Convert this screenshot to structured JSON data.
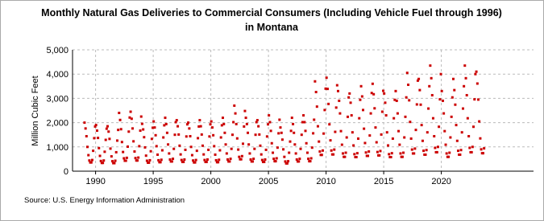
{
  "chart_data": {
    "type": "scatter",
    "title": [
      "Monthly Natural Gas Deliveries to Commercial Consumers (Including Vehicle Fuel through 1996)",
      "in Montana"
    ],
    "y_label": "Million Cubic Feet",
    "source": "Source: U.S. Energy Information Administration",
    "color": "#cc0000",
    "grid": true,
    "xlim": [
      1988,
      2028
    ],
    "ylim": [
      0,
      5000
    ],
    "xticks": [
      1990,
      1995,
      2000,
      2005,
      2010,
      2015,
      2020
    ],
    "yticks": [
      0,
      {
        "value": 1000,
        "label": "1,000"
      },
      {
        "value": 2000,
        "label": "2,000"
      },
      {
        "value": 3000,
        "label": "3,000"
      },
      {
        "value": 4000,
        "label": "4,000"
      },
      {
        "value": 5000,
        "label": "5,000"
      }
    ],
    "x": [
      1989.04,
      1989.13,
      1989.21,
      1989.29,
      1989.38,
      1989.46,
      1989.54,
      1989.63,
      1989.71,
      1989.79,
      1989.88,
      1989.96,
      1990.04,
      1990.13,
      1990.21,
      1990.29,
      1990.38,
      1990.46,
      1990.54,
      1990.63,
      1990.71,
      1990.79,
      1990.88,
      1990.96,
      1991.04,
      1991.13,
      1991.21,
      1991.29,
      1991.38,
      1991.46,
      1991.54,
      1991.63,
      1991.71,
      1991.79,
      1991.88,
      1991.96,
      1992.04,
      1992.13,
      1992.21,
      1992.29,
      1992.38,
      1992.46,
      1992.54,
      1992.63,
      1992.71,
      1992.79,
      1992.88,
      1992.96,
      1993.04,
      1993.13,
      1993.21,
      1993.29,
      1993.38,
      1993.46,
      1993.54,
      1993.63,
      1993.71,
      1993.79,
      1993.88,
      1993.96,
      1994.04,
      1994.13,
      1994.21,
      1994.29,
      1994.38,
      1994.46,
      1994.54,
      1994.63,
      1994.71,
      1994.79,
      1994.88,
      1994.96,
      1995.04,
      1995.13,
      1995.21,
      1995.29,
      1995.38,
      1995.46,
      1995.54,
      1995.63,
      1995.71,
      1995.79,
      1995.88,
      1995.96,
      1996.04,
      1996.13,
      1996.21,
      1996.29,
      1996.38,
      1996.46,
      1996.54,
      1996.63,
      1996.71,
      1996.79,
      1996.88,
      1996.96,
      1997.04,
      1997.13,
      1997.21,
      1997.29,
      1997.38,
      1997.46,
      1997.54,
      1997.63,
      1997.71,
      1997.79,
      1997.88,
      1997.96,
      1998.04,
      1998.13,
      1998.21,
      1998.29,
      1998.38,
      1998.46,
      1998.54,
      1998.63,
      1998.71,
      1998.79,
      1998.88,
      1998.96,
      1999.04,
      1999.13,
      1999.21,
      1999.29,
      1999.38,
      1999.46,
      1999.54,
      1999.63,
      1999.71,
      1999.79,
      1999.88,
      1999.96,
      2000.04,
      2000.13,
      2000.21,
      2000.29,
      2000.38,
      2000.46,
      2000.54,
      2000.63,
      2000.71,
      2000.79,
      2000.88,
      2000.96,
      2001.04,
      2001.13,
      2001.21,
      2001.29,
      2001.38,
      2001.46,
      2001.54,
      2001.63,
      2001.71,
      2001.79,
      2001.88,
      2001.96,
      2002.04,
      2002.13,
      2002.21,
      2002.29,
      2002.38,
      2002.46,
      2002.54,
      2002.63,
      2002.71,
      2002.79,
      2002.88,
      2002.96,
      2003.04,
      2003.13,
      2003.21,
      2003.29,
      2003.38,
      2003.46,
      2003.54,
      2003.63,
      2003.71,
      2003.79,
      2003.88,
      2003.96,
      2004.04,
      2004.13,
      2004.21,
      2004.29,
      2004.38,
      2004.46,
      2004.54,
      2004.63,
      2004.71,
      2004.79,
      2004.88,
      2004.96,
      2005.04,
      2005.13,
      2005.21,
      2005.29,
      2005.38,
      2005.46,
      2005.54,
      2005.63,
      2005.71,
      2005.79,
      2005.88,
      2005.96,
      2006.04,
      2006.13,
      2006.21,
      2006.29,
      2006.38,
      2006.46,
      2006.54,
      2006.63,
      2006.71,
      2006.79,
      2006.88,
      2006.96,
      2007.04,
      2007.13,
      2007.21,
      2007.29,
      2007.38,
      2007.46,
      2007.54,
      2007.63,
      2007.71,
      2007.79,
      2007.88,
      2007.96,
      2008.04,
      2008.13,
      2008.21,
      2008.29,
      2008.38,
      2008.46,
      2008.54,
      2008.63,
      2008.71,
      2008.79,
      2008.88,
      2008.96,
      2009.04,
      2009.13,
      2009.21,
      2009.29,
      2009.38,
      2009.46,
      2009.54,
      2009.63,
      2009.71,
      2009.79,
      2009.88,
      2009.96,
      2010.04,
      2010.13,
      2010.21,
      2010.29,
      2010.38,
      2010.46,
      2010.54,
      2010.63,
      2010.71,
      2010.79,
      2010.88,
      2010.96,
      2011.04,
      2011.13,
      2011.21,
      2011.29,
      2011.38,
      2011.46,
      2011.54,
      2011.63,
      2011.71,
      2011.79,
      2011.88,
      2011.96,
      2012.04,
      2012.13,
      2012.21,
      2012.29,
      2012.38,
      2012.46,
      2012.54,
      2012.63,
      2012.71,
      2012.79,
      2012.88,
      2012.96,
      2013.04,
      2013.13,
      2013.21,
      2013.29,
      2013.38,
      2013.46,
      2013.54,
      2013.63,
      2013.71,
      2013.79,
      2013.88,
      2013.96,
      2014.04,
      2014.13,
      2014.21,
      2014.29,
      2014.38,
      2014.46,
      2014.54,
      2014.63,
      2014.71,
      2014.79,
      2014.88,
      2014.96,
      2015.04,
      2015.13,
      2015.21,
      2015.29,
      2015.38,
      2015.46,
      2015.54,
      2015.63,
      2015.71,
      2015.79,
      2015.88,
      2015.96,
      2016.04,
      2016.13,
      2016.21,
      2016.29,
      2016.38,
      2016.46,
      2016.54,
      2016.63,
      2016.71,
      2016.79,
      2016.88,
      2016.96,
      2017.04,
      2017.13,
      2017.21,
      2017.29,
      2017.38,
      2017.46,
      2017.54,
      2017.63,
      2017.71,
      2017.79,
      2017.88,
      2017.96,
      2018.04,
      2018.13,
      2018.21,
      2018.29,
      2018.38,
      2018.46,
      2018.54,
      2018.63,
      2018.71,
      2018.79,
      2018.88,
      2018.96,
      2019.04,
      2019.13,
      2019.21,
      2019.29,
      2019.38,
      2019.46,
      2019.54,
      2019.63,
      2019.71,
      2019.79,
      2019.88,
      2019.96,
      2020.04,
      2020.13,
      2020.21,
      2020.29,
      2020.38,
      2020.46,
      2020.54,
      2020.63,
      2020.71,
      2020.79,
      2020.88,
      2020.96,
      2021.04,
      2021.13,
      2021.21,
      2021.29,
      2021.38,
      2021.46,
      2021.54,
      2021.63,
      2021.71,
      2021.79,
      2021.88,
      2021.96,
      2022.04,
      2022.13,
      2022.21,
      2022.29,
      2022.38,
      2022.46,
      2022.54,
      2022.63,
      2022.71,
      2022.79,
      2022.88,
      2022.96,
      2023.04,
      2023.13,
      2023.21,
      2023.29,
      2023.38,
      2023.46,
      2023.54,
      2023.63,
      2023.71
    ],
    "values": [
      2000,
      1760,
      1440,
      1000,
      660,
      440,
      360,
      360,
      460,
      840,
      1360,
      1840,
      1900,
      1670,
      1370,
      950,
      630,
      420,
      340,
      340,
      440,
      800,
      1290,
      1750,
      1850,
      1630,
      1330,
      930,
      610,
      410,
      330,
      330,
      430,
      780,
      1260,
      1700,
      2400,
      2110,
      1730,
      1200,
      790,
      530,
      430,
      430,
      550,
      1010,
      1630,
      2210,
      2450,
      2160,
      1760,
      1230,
      810,
      540,
      440,
      440,
      560,
      1030,
      1670,
      2250,
      1950,
      1720,
      1400,
      980,
      640,
      430,
      350,
      350,
      450,
      820,
      1330,
      1790,
      2050,
      1800,
      1480,
      1030,
      680,
      450,
      370,
      370,
      470,
      860,
      1390,
      1890,
      2200,
      1940,
      1580,
      1100,
      730,
      480,
      400,
      400,
      510,
      920,
      1500,
      2020,
      2100,
      1850,
      1510,
      1050,
      690,
      460,
      380,
      380,
      480,
      880,
      1430,
      1930,
      2000,
      1760,
      1440,
      1000,
      660,
      440,
      360,
      360,
      460,
      840,
      1360,
      1840,
      2100,
      1850,
      1510,
      1050,
      690,
      460,
      380,
      380,
      480,
      880,
      1430,
      1930,
      2050,
      1800,
      1480,
      1030,
      680,
      450,
      370,
      370,
      470,
      860,
      1390,
      1890,
      2200,
      1940,
      1580,
      1100,
      730,
      480,
      400,
      400,
      510,
      920,
      1500,
      2020,
      2700,
      2380,
      1940,
      1350,
      890,
      590,
      490,
      490,
      620,
      1130,
      1840,
      2480,
      2200,
      1940,
      1580,
      1100,
      730,
      480,
      400,
      400,
      510,
      920,
      1500,
      2020,
      2100,
      1850,
      1510,
      1050,
      690,
      460,
      380,
      380,
      480,
      880,
      1430,
      1930,
      2300,
      2020,
      1660,
      1150,
      760,
      510,
      410,
      410,
      530,
      970,
      1560,
      2120,
      1800,
      1580,
      1300,
      900,
      590,
      400,
      320,
      320,
      410,
      760,
      1220,
      1660,
      2200,
      1940,
      1580,
      1100,
      730,
      480,
      400,
      400,
      510,
      920,
      1500,
      2020,
      2300,
      2020,
      1660,
      1150,
      760,
      510,
      410,
      410,
      530,
      970,
      1560,
      2120,
      3700,
      3260,
      2660,
      1850,
      1220,
      810,
      670,
      670,
      850,
      1550,
      2520,
      3400,
      3850,
      3390,
      2770,
      1930,
      1270,
      850,
      690,
      690,
      890,
      1620,
      2620,
      3540,
      3300,
      2900,
      2380,
      1650,
      1090,
      730,
      590,
      590,
      760,
      1390,
      2240,
      3040,
      3200,
      2820,
      2300,
      1600,
      1060,
      700,
      580,
      580,
      740,
      1340,
      2180,
      2940,
      3500,
      3080,
      2520,
      1750,
      1160,
      770,
      630,
      630,
      810,
      1470,
      2380,
      3220,
      3600,
      3170,
      2590,
      1800,
      1190,
      790,
      650,
      650,
      830,
      1510,
      2450,
      3310,
      3200,
      2820,
      2300,
      1600,
      1060,
      700,
      580,
      580,
      740,
      1340,
      2180,
      2940,
      3300,
      2900,
      2380,
      1650,
      1090,
      730,
      590,
      590,
      760,
      1390,
      2240,
      3040,
      4050,
      3560,
      2920,
      2030,
      1340,
      890,
      730,
      730,
      930,
      1700,
      2750,
      3730,
      3800,
      3340,
      2740,
      1900,
      1250,
      840,
      680,
      680,
      870,
      1600,
      2580,
      3500,
      4350,
      3830,
      3130,
      2180,
      1440,
      960,
      780,
      780,
      1000,
      1830,
      2960,
      4000,
      3300,
      2900,
      2380,
      1650,
      1090,
      730,
      590,
      590,
      760,
      1390,
      2240,
      3040,
      3800,
      3340,
      2740,
      1900,
      1250,
      840,
      680,
      680,
      870,
      1600,
      2580,
      3500,
      4350,
      3830,
      3130,
      2180,
      1440,
      960,
      780,
      780,
      1000,
      1830,
      2960,
      4000,
      4100,
      3610,
      2950,
      2050,
      1350,
      900,
      740,
      740,
      940
    ]
  }
}
